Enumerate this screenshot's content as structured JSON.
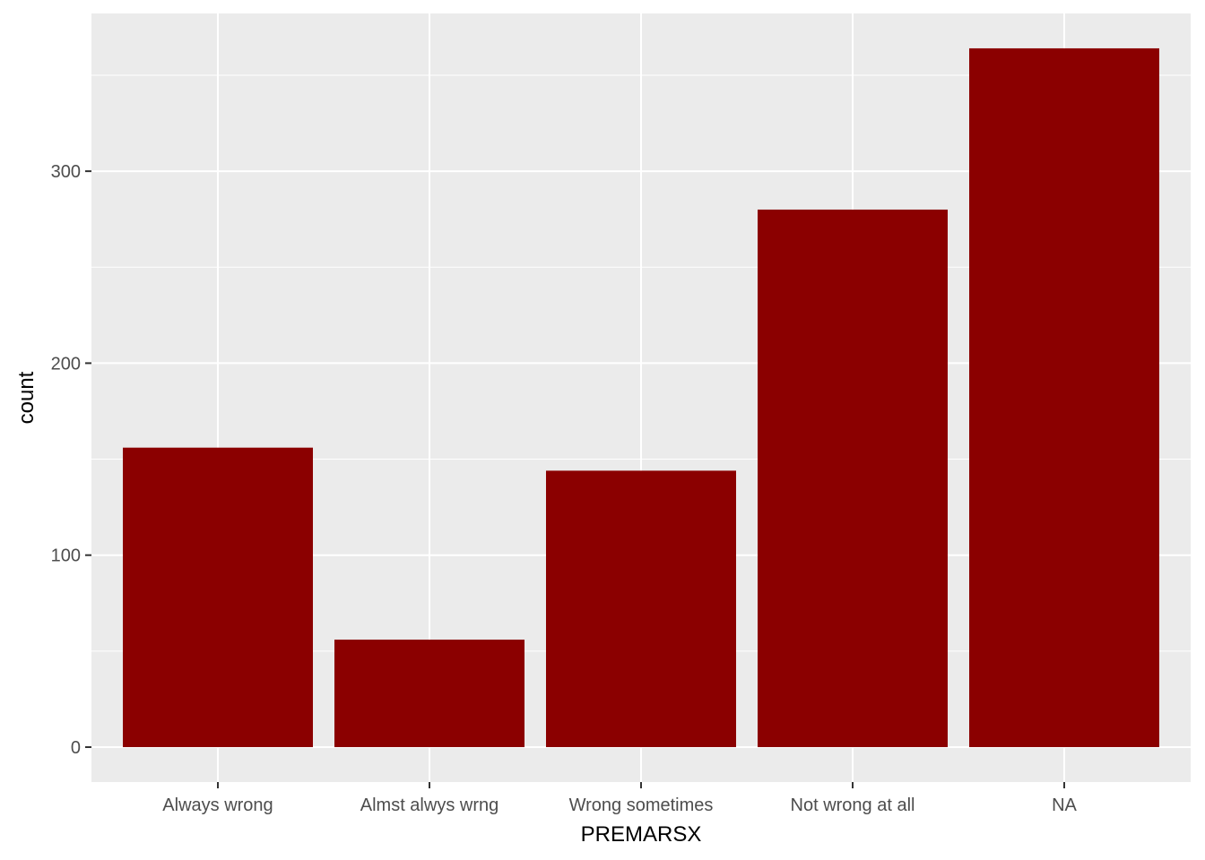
{
  "chart_data": {
    "type": "bar",
    "categories": [
      "Always wrong",
      "Almst alwys wrng",
      "Wrong sometimes",
      "Not wrong at all",
      "NA"
    ],
    "values": [
      156,
      56,
      144,
      280,
      364
    ],
    "xlabel": "PREMARSX",
    "ylabel": "count",
    "ylim": [
      0,
      364
    ],
    "y_ticks": [
      0,
      100,
      200,
      300
    ],
    "bar_color": "#8B0000",
    "panel_color": "#EBEBEB",
    "grid_color": "#FFFFFF",
    "grid": true,
    "legend": "none"
  }
}
